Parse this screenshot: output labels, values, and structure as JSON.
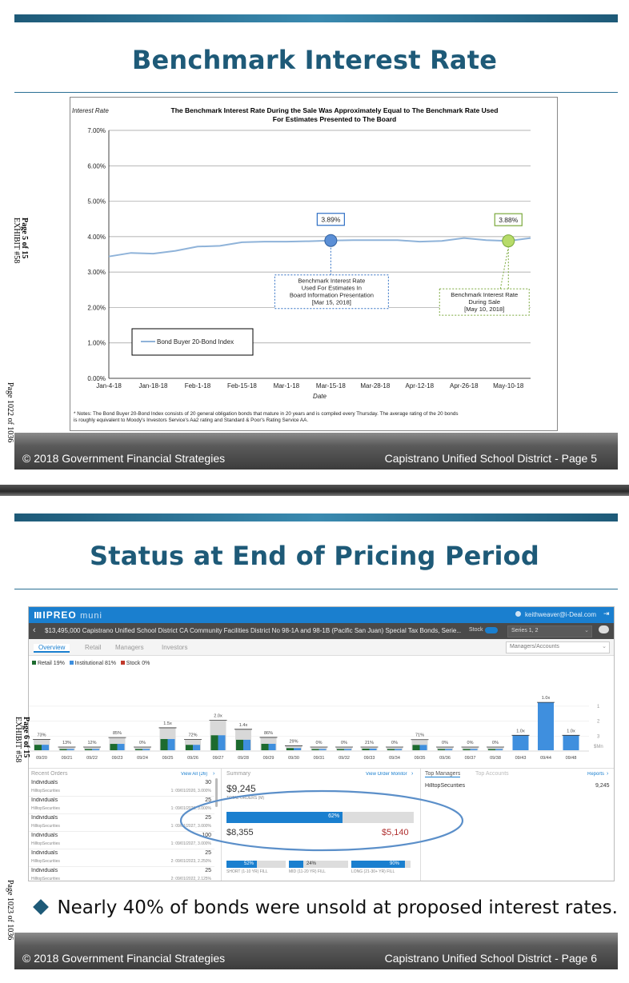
{
  "slide1": {
    "title": "Benchmark Interest Rate",
    "footer_left": "© 2018 Government Financial Strategies",
    "footer_right": "Capistrano Unified School District - Page 5",
    "side_page": "Page 5 of 15",
    "side_exhibit": "EXHIBIT #58",
    "side_outer": "Page 1022 of 1036"
  },
  "chart_data": {
    "type": "line",
    "title": "The Benchmark Interest Rate During the Sale Was Approximately Equal to The Benchmark Rate Used For Estimates Presented to The Board",
    "title_line1": "The Benchmark Interest Rate During the Sale Was Approximately Equal to The Benchmark Rate Used",
    "title_line2": "For Estimates Presented to The Board",
    "ylabel": "Interest Rate",
    "xlabel": "Date",
    "ylim": [
      0,
      7
    ],
    "yticks": [
      "0.00%",
      "1.00%",
      "2.00%",
      "3.00%",
      "4.00%",
      "5.00%",
      "6.00%",
      "7.00%"
    ],
    "xticks": [
      "Jan-4-18",
      "Jan-18-18",
      "Feb-1-18",
      "Feb-15-18",
      "Mar-1-18",
      "Mar-15-18",
      "Mar-28-18",
      "Apr-12-18",
      "Apr-26-18",
      "May-10-18"
    ],
    "grid": true,
    "series": [
      {
        "name": "Bond Buyer 20-Bond Index",
        "color": "#8fb3d9",
        "x": [
          "Jan-4-18",
          "Jan-11-18",
          "Jan-18-18",
          "Jan-25-18",
          "Feb-1-18",
          "Feb-8-18",
          "Feb-15-18",
          "Feb-22-18",
          "Mar-1-18",
          "Mar-8-18",
          "Mar-15-18",
          "Mar-22-18",
          "Mar-28-18",
          "Apr-5-18",
          "Apr-12-18",
          "Apr-19-18",
          "Apr-26-18",
          "May-3-18",
          "May-10-18",
          "May-17-18"
        ],
        "values": [
          3.44,
          3.54,
          3.52,
          3.6,
          3.72,
          3.74,
          3.84,
          3.86,
          3.86,
          3.87,
          3.89,
          3.9,
          3.9,
          3.9,
          3.86,
          3.88,
          3.96,
          3.9,
          3.88,
          3.96
        ]
      }
    ],
    "legend": "bottom-left",
    "annotations": [
      {
        "value_label": "3.89%",
        "lines": [
          "Benchmark Interest Rate",
          "Used For Estimates In",
          "Board Information Presentation",
          "[Mar 15, 2018]"
        ],
        "color": "#2f6fc4",
        "x_index": 10,
        "value": 3.89
      },
      {
        "value_label": "3.88%",
        "lines": [
          "Benchmark Interest Rate",
          "During Sale",
          "[May 10, 2018]"
        ],
        "color": "#7aa83b",
        "x_index": 18,
        "value": 3.88
      }
    ],
    "notes": [
      "* Notes: The Bond Buyer 20-Bond Index consists of 20 general obligation bonds that mature in 20 years and is compiled every Thursday.   The average rating of the 20 bonds",
      "is roughly equivalent to Moody's Investors Service's Aa2 rating and Standard & Poor's Rating Service AA."
    ]
  },
  "slide2": {
    "title": "Status at End of Pricing Period",
    "bullet": "Nearly 40% of bonds were unsold at proposed interest rates.",
    "footer_left": "© 2018 Government Financial Strategies",
    "footer_right": "Capistrano Unified School District - Page 6",
    "side_page": "Page 6 of 15",
    "side_exhibit": "EXHIBIT #58",
    "side_outer": "Page 1023 of 1036"
  },
  "ipreo": {
    "logo": "IPREO",
    "logo_sub": "muni",
    "user": "keithweaver@i-Deal.com",
    "deal_title": "$13,495,000 Capistrano Unified School District CA Community Facilities District No 98-1A and 98-1B (Pacific San Juan) Special Tax Bonds, Serie...",
    "stock_label": "Stock",
    "series_select": "Series 1, 2",
    "tabs": [
      "Overview",
      "Retail",
      "Managers",
      "Investors"
    ],
    "accounts_select": "Managers/Accounts",
    "legend": [
      "Retail 19%",
      "Institutional 81%",
      "Stock 0%"
    ],
    "bar_dates": [
      "09/20",
      "09/21",
      "09/22",
      "09/23",
      "09/24",
      "09/25",
      "09/26",
      "09/27",
      "09/28",
      "09/29",
      "09/30",
      "09/31",
      "09/32",
      "09/33",
      "09/34",
      "09/35",
      "09/36",
      "09/37",
      "09/38",
      "09/43",
      "09/44",
      "09/48"
    ],
    "bar_labels": [
      "73%",
      "13%",
      "12%",
      "85%",
      "0%",
      "1.5x",
      "72%",
      "2.0x",
      "1.4x",
      "86%",
      "29%",
      "0%",
      "0%",
      "21%",
      "0%",
      "71%",
      "0%",
      "0%",
      "0%",
      "1.0x",
      "1.0x",
      "1.0x"
    ],
    "bar_values": [
      0.73,
      0.13,
      0.12,
      0.85,
      0,
      1.5,
      0.72,
      2.0,
      1.4,
      0.86,
      0.29,
      0,
      0,
      0.21,
      0,
      0.71,
      0,
      0,
      0,
      1.0,
      3.2,
      1.0
    ],
    "axis_labels": [
      "3",
      "2",
      "1",
      "$Mn"
    ],
    "recent_orders_title": "Recent Orders",
    "view_all": "View All (26)",
    "orders": [
      {
        "name": "Individuals",
        "firm": "HilltopSecurities",
        "qty": "30",
        "detail": "1: 09/01/2020, 3.000%"
      },
      {
        "name": "Individuals",
        "firm": "HilltopSecurities",
        "qty": "25",
        "detail": "1: 09/01/2020, 3.000%"
      },
      {
        "name": "Individuals",
        "firm": "HilltopSecurities",
        "qty": "25",
        "detail": "1: 09/01/2027, 3.000%"
      },
      {
        "name": "Individuals",
        "firm": "HilltopSecurities",
        "qty": "100",
        "detail": "1: 09/01/2027, 3.000%"
      },
      {
        "name": "Individuals",
        "firm": "HilltopSecurities",
        "qty": "25",
        "detail": "2: 09/01/2023, 2.250%"
      },
      {
        "name": "Individuals",
        "firm": "HilltopSecurities",
        "qty": "25",
        "detail": "2: 09/01/2022, 2.125%"
      }
    ],
    "summary_title": "Summary",
    "view_order_monitor": "View Order Monitor",
    "total_orders": "$9,245",
    "total_orders_label": "TOTAL ORDERS (M)",
    "pct_sold": "62%",
    "sold_value": "$8,355",
    "unsold_value": "$5,140",
    "short_pct": "52%",
    "mid_pct": "24%",
    "long_pct": "90%",
    "short_label": "SHORT (1-10 YR) FILL",
    "mid_label": "MID (11-20 YR) FILL",
    "long_label": "LONG (21-30+ YR) FILL",
    "top_managers_tab": "Top Managers",
    "top_accounts_tab": "Top Accounts",
    "reports_link": "Reports",
    "manager_name": "HilltopSecurities",
    "manager_value": "9,245"
  },
  "colors": {
    "title_blue": "#1e5a78",
    "ipreo_blue": "#1a7fcf",
    "bar_blue": "#3f8fde",
    "retail_green": "#1d6b2f",
    "ellipse": "#5b8fc9"
  }
}
